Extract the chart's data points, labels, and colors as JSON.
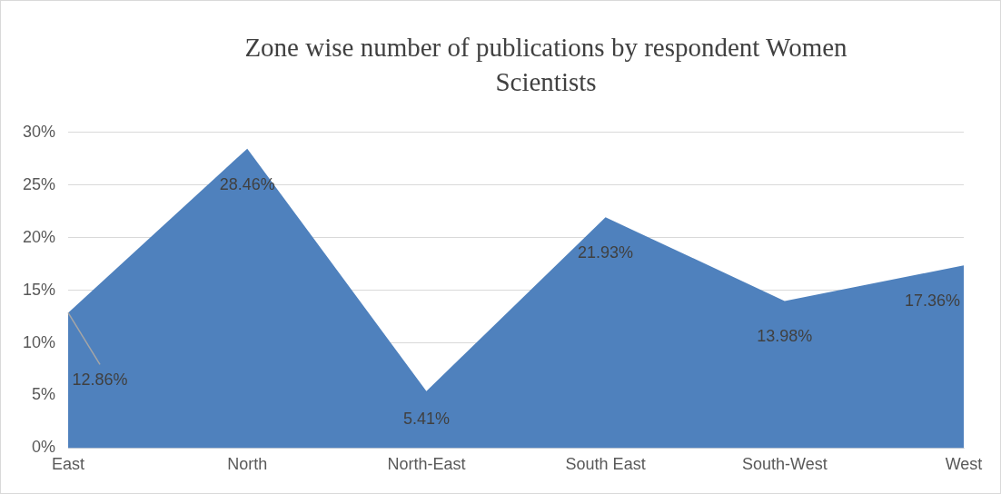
{
  "chart_data": {
    "type": "area",
    "title": "Zone wise number of publications by respondent Women Scientists",
    "categories": [
      "East",
      "North",
      "North-East",
      "South East",
      "South-West",
      "West"
    ],
    "series": [
      {
        "color": "#4f81bd",
        "values": [
          12.86,
          28.46,
          5.41,
          21.93,
          13.98,
          17.36
        ],
        "value_labels": [
          "12.86%",
          "28.46%",
          "5.41%",
          "21.93%",
          "13.98%",
          "17.36%"
        ]
      }
    ],
    "ylim": [
      0,
      30
    ],
    "yticks": [
      {
        "value": 0,
        "label": "0%"
      },
      {
        "value": 5,
        "label": "5%"
      },
      {
        "value": 10,
        "label": "10%"
      },
      {
        "value": 15,
        "label": "15%"
      },
      {
        "value": 20,
        "label": "20%"
      },
      {
        "value": 25,
        "label": "25%"
      },
      {
        "value": 30,
        "label": "30%"
      }
    ],
    "grid": "y",
    "legend": false
  }
}
